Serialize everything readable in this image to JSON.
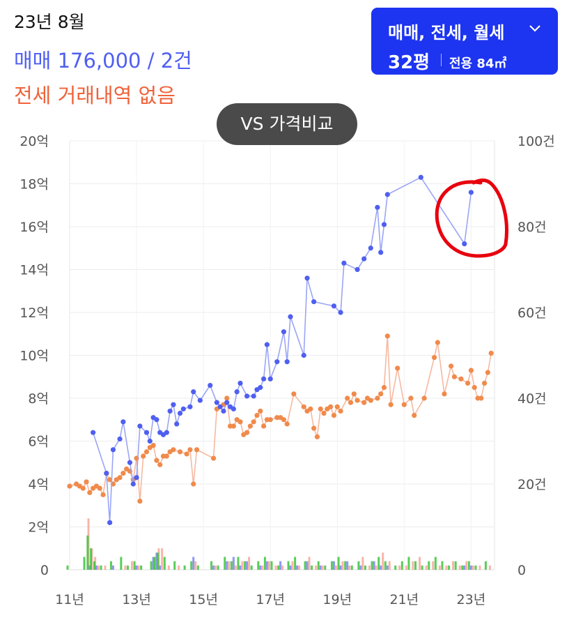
{
  "header": {
    "date": "23년 8월",
    "sale_summary": "매매 176,000 / 2건",
    "rent_summary": "전세 거래내역 없음"
  },
  "selector": {
    "types": "매매, 전세, 월세",
    "size": "32평",
    "area": "전용 84㎡",
    "chevron_icon": "chevron-down-icon"
  },
  "compare_button": "VS 가격비교",
  "colors": {
    "sale": "#4f5ff0",
    "sale_line": "#9aa5f5",
    "rent": "#f08a4b",
    "rent_line": "#f7b8a0",
    "accent": "#1d34f0",
    "annotation": "#e8000d",
    "vol_green": "#3cc43c",
    "vol_blue": "#7c86f0",
    "vol_red": "#f7a89a"
  },
  "chart_data": {
    "type": "line",
    "y_left_ticks": [
      "0",
      "2억",
      "4억",
      "6억",
      "8억",
      "10억",
      "12억",
      "14억",
      "16억",
      "18억",
      "20억"
    ],
    "y_right_ticks": [
      "0",
      "20건",
      "40건",
      "60건",
      "80건",
      "100건"
    ],
    "x_ticks": [
      "11년",
      "13년",
      "15년",
      "17년",
      "19년",
      "21년",
      "23년"
    ],
    "x_range": [
      2011,
      2023.7
    ],
    "y_left_range": [
      0,
      20
    ],
    "y_right_range": [
      0,
      100
    ],
    "grid": true,
    "annotation": "red hand-drawn circle around the last two sale points",
    "series": [
      {
        "key": "sale",
        "points": [
          [
            2011.7,
            6.4
          ],
          [
            2012.1,
            4.5
          ],
          [
            2012.2,
            2.2
          ],
          [
            2012.3,
            5.6
          ],
          [
            2012.5,
            6.1
          ],
          [
            2012.6,
            6.9
          ],
          [
            2012.8,
            5.0
          ],
          [
            2012.9,
            4.0
          ],
          [
            2013.0,
            4.3
          ],
          [
            2013.1,
            6.7
          ],
          [
            2013.3,
            6.4
          ],
          [
            2013.4,
            6.0
          ],
          [
            2013.5,
            7.1
          ],
          [
            2013.6,
            7.0
          ],
          [
            2013.7,
            6.4
          ],
          [
            2013.8,
            6.3
          ],
          [
            2013.9,
            6.4
          ],
          [
            2014.0,
            7.4
          ],
          [
            2014.1,
            7.7
          ],
          [
            2014.2,
            6.8
          ],
          [
            2014.3,
            7.3
          ],
          [
            2014.4,
            7.5
          ],
          [
            2014.6,
            7.6
          ],
          [
            2014.7,
            8.3
          ],
          [
            2014.9,
            7.9
          ],
          [
            2015.2,
            8.6
          ],
          [
            2015.4,
            7.8
          ],
          [
            2015.5,
            7.6
          ],
          [
            2015.6,
            7.4
          ],
          [
            2015.7,
            7.8
          ],
          [
            2015.8,
            7.6
          ],
          [
            2015.9,
            7.5
          ],
          [
            2016.0,
            8.3
          ],
          [
            2016.1,
            8.7
          ],
          [
            2016.3,
            8.1
          ],
          [
            2016.5,
            8.1
          ],
          [
            2016.6,
            8.4
          ],
          [
            2016.7,
            8.5
          ],
          [
            2016.8,
            8.9
          ],
          [
            2016.9,
            10.5
          ],
          [
            2017.0,
            8.9
          ],
          [
            2017.2,
            9.7
          ],
          [
            2017.4,
            11.1
          ],
          [
            2017.5,
            9.7
          ],
          [
            2017.6,
            11.8
          ],
          [
            2018.0,
            10.0
          ],
          [
            2018.1,
            13.6
          ],
          [
            2018.3,
            12.5
          ],
          [
            2018.9,
            12.3
          ],
          [
            2019.1,
            12.0
          ],
          [
            2019.2,
            14.3
          ],
          [
            2019.6,
            14.0
          ],
          [
            2019.8,
            14.5
          ],
          [
            2020.0,
            15.0
          ],
          [
            2020.2,
            16.9
          ],
          [
            2020.3,
            14.8
          ],
          [
            2020.4,
            16.1
          ],
          [
            2020.5,
            17.5
          ],
          [
            2021.5,
            18.3
          ],
          [
            2022.8,
            15.2
          ],
          [
            2023.0,
            17.6
          ]
        ]
      },
      {
        "key": "rent",
        "points": [
          [
            2011.0,
            3.9
          ],
          [
            2011.2,
            4.0
          ],
          [
            2011.3,
            3.9
          ],
          [
            2011.4,
            3.8
          ],
          [
            2011.5,
            4.1
          ],
          [
            2011.6,
            3.6
          ],
          [
            2011.7,
            3.8
          ],
          [
            2011.8,
            3.9
          ],
          [
            2011.9,
            3.8
          ],
          [
            2012.0,
            3.5
          ],
          [
            2012.1,
            4.5
          ],
          [
            2012.2,
            4.2
          ],
          [
            2012.3,
            4.0
          ],
          [
            2012.4,
            4.2
          ],
          [
            2012.5,
            4.3
          ],
          [
            2012.6,
            4.5
          ],
          [
            2012.7,
            4.7
          ],
          [
            2012.8,
            4.6
          ],
          [
            2012.9,
            4.2
          ],
          [
            2013.0,
            5.2
          ],
          [
            2013.1,
            3.2
          ],
          [
            2013.2,
            5.3
          ],
          [
            2013.3,
            5.5
          ],
          [
            2013.4,
            5.7
          ],
          [
            2013.5,
            5.8
          ],
          [
            2013.6,
            5.1
          ],
          [
            2013.7,
            4.9
          ],
          [
            2013.8,
            5.3
          ],
          [
            2013.9,
            5.3
          ],
          [
            2014.0,
            5.5
          ],
          [
            2014.1,
            5.6
          ],
          [
            2014.3,
            5.5
          ],
          [
            2014.5,
            5.4
          ],
          [
            2014.6,
            5.6
          ],
          [
            2014.7,
            4.0
          ],
          [
            2014.8,
            5.6
          ],
          [
            2015.3,
            5.2
          ],
          [
            2015.4,
            7.5
          ],
          [
            2015.6,
            7.7
          ],
          [
            2015.7,
            8.0
          ],
          [
            2015.8,
            6.7
          ],
          [
            2015.9,
            6.7
          ],
          [
            2016.0,
            7.0
          ],
          [
            2016.1,
            6.9
          ],
          [
            2016.2,
            6.3
          ],
          [
            2016.3,
            6.4
          ],
          [
            2016.4,
            6.7
          ],
          [
            2016.5,
            6.9
          ],
          [
            2016.6,
            7.2
          ],
          [
            2016.7,
            7.4
          ],
          [
            2016.8,
            6.7
          ],
          [
            2016.9,
            7.0
          ],
          [
            2017.0,
            7.0
          ],
          [
            2017.2,
            7.1
          ],
          [
            2017.3,
            7.1
          ],
          [
            2017.4,
            7.0
          ],
          [
            2017.5,
            6.8
          ],
          [
            2017.7,
            8.2
          ],
          [
            2018.0,
            7.6
          ],
          [
            2018.1,
            7.4
          ],
          [
            2018.2,
            7.5
          ],
          [
            2018.3,
            6.6
          ],
          [
            2018.4,
            6.2
          ],
          [
            2018.5,
            7.5
          ],
          [
            2018.6,
            7.3
          ],
          [
            2018.7,
            7.5
          ],
          [
            2018.8,
            7.6
          ],
          [
            2018.9,
            7.2
          ],
          [
            2019.0,
            7.6
          ],
          [
            2019.1,
            7.4
          ],
          [
            2019.3,
            8.0
          ],
          [
            2019.4,
            7.8
          ],
          [
            2019.5,
            8.2
          ],
          [
            2019.6,
            7.9
          ],
          [
            2019.8,
            7.8
          ],
          [
            2019.9,
            8.0
          ],
          [
            2020.0,
            7.9
          ],
          [
            2020.2,
            8.0
          ],
          [
            2020.3,
            8.2
          ],
          [
            2020.4,
            8.5
          ],
          [
            2020.5,
            10.9
          ],
          [
            2020.6,
            7.7
          ],
          [
            2020.8,
            9.4
          ],
          [
            2021.0,
            7.7
          ],
          [
            2021.2,
            8.0
          ],
          [
            2021.3,
            7.2
          ],
          [
            2021.6,
            8.0
          ],
          [
            2021.9,
            9.9
          ],
          [
            2022.0,
            10.6
          ],
          [
            2022.2,
            8.2
          ],
          [
            2022.4,
            9.5
          ],
          [
            2022.5,
            9.0
          ],
          [
            2022.7,
            8.9
          ],
          [
            2022.9,
            8.7
          ],
          [
            2023.0,
            9.3
          ],
          [
            2023.1,
            8.5
          ],
          [
            2023.2,
            8.0
          ],
          [
            2023.3,
            8.0
          ],
          [
            2023.4,
            8.7
          ],
          [
            2023.5,
            9.2
          ],
          [
            2023.6,
            10.1
          ]
        ]
      }
    ],
    "volume": [
      [
        2011.0,
        1,
        0,
        0
      ],
      [
        2011.5,
        3,
        0,
        12
      ],
      [
        2011.6,
        8,
        1,
        5
      ],
      [
        2011.7,
        5,
        0,
        3
      ],
      [
        2011.8,
        2,
        1,
        1
      ],
      [
        2012.0,
        1,
        0,
        1
      ],
      [
        2012.3,
        2,
        1,
        0
      ],
      [
        2012.6,
        3,
        0,
        1
      ],
      [
        2012.8,
        1,
        0,
        2
      ],
      [
        2013.0,
        2,
        1,
        1
      ],
      [
        2013.2,
        1,
        0,
        0
      ],
      [
        2013.5,
        2,
        3,
        0
      ],
      [
        2013.6,
        3,
        4,
        5
      ],
      [
        2013.7,
        4,
        1,
        5
      ],
      [
        2013.9,
        3,
        0,
        1
      ],
      [
        2014.2,
        2,
        0,
        1
      ],
      [
        2014.5,
        1,
        0,
        0
      ],
      [
        2014.7,
        2,
        3,
        2
      ],
      [
        2014.9,
        1,
        0,
        0
      ],
      [
        2015.3,
        2,
        1,
        1
      ],
      [
        2015.5,
        1,
        0,
        0
      ],
      [
        2015.7,
        3,
        2,
        2
      ],
      [
        2015.9,
        2,
        3,
        1
      ],
      [
        2016.1,
        3,
        1,
        2
      ],
      [
        2016.3,
        2,
        2,
        3
      ],
      [
        2016.5,
        1,
        0,
        0
      ],
      [
        2016.7,
        2,
        1,
        1
      ],
      [
        2016.9,
        3,
        2,
        2
      ],
      [
        2017.1,
        2,
        0,
        1
      ],
      [
        2017.3,
        1,
        2,
        1
      ],
      [
        2017.6,
        2,
        1,
        2
      ],
      [
        2017.8,
        3,
        1,
        1
      ],
      [
        2018.1,
        2,
        2,
        3
      ],
      [
        2018.3,
        1,
        0,
        1
      ],
      [
        2018.5,
        2,
        1,
        1
      ],
      [
        2018.7,
        1,
        0,
        0
      ],
      [
        2018.9,
        2,
        2,
        1
      ],
      [
        2019.1,
        3,
        1,
        2
      ],
      [
        2019.3,
        2,
        2,
        1
      ],
      [
        2019.5,
        1,
        0,
        0
      ],
      [
        2019.7,
        2,
        1,
        3
      ],
      [
        2019.9,
        1,
        0,
        1
      ],
      [
        2020.1,
        2,
        2,
        1
      ],
      [
        2020.3,
        3,
        1,
        4
      ],
      [
        2020.5,
        2,
        1,
        2
      ],
      [
        2020.8,
        1,
        0,
        1
      ],
      [
        2021.0,
        2,
        0,
        1
      ],
      [
        2021.2,
        3,
        0,
        2
      ],
      [
        2021.4,
        2,
        0,
        3
      ],
      [
        2021.6,
        1,
        0,
        1
      ],
      [
        2021.8,
        2,
        0,
        2
      ],
      [
        2022.0,
        3,
        0,
        1
      ],
      [
        2022.2,
        2,
        0,
        1
      ],
      [
        2022.4,
        1,
        0,
        2
      ],
      [
        2022.6,
        2,
        0,
        1
      ],
      [
        2022.8,
        1,
        1,
        2
      ],
      [
        2023.0,
        2,
        1,
        1
      ],
      [
        2023.2,
        1,
        0,
        1
      ],
      [
        2023.5,
        2,
        0,
        1
      ]
    ]
  }
}
